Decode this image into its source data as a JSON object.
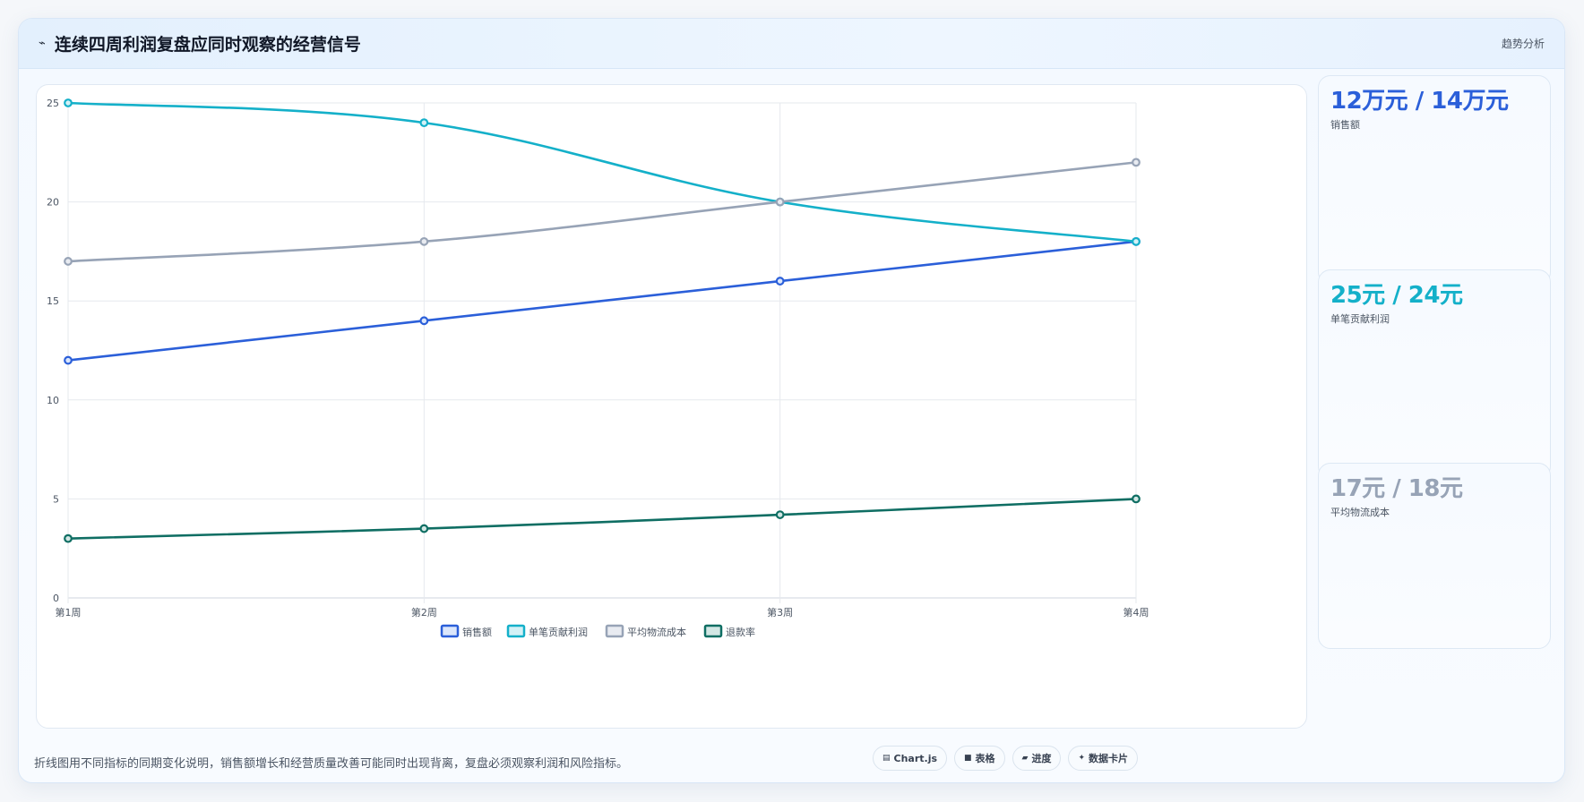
{
  "header": {
    "icon": "wave-icon",
    "title": "连续四周利润复盘应同时观察的经营信号",
    "tag": "趋势分析"
  },
  "chart_data": {
    "type": "line",
    "title": "",
    "xlabel": "",
    "ylabel": "",
    "categories": [
      "第1周",
      "第2周",
      "第3周",
      "第4周"
    ],
    "ylim": [
      0,
      25
    ],
    "yticks": [
      0,
      5,
      10,
      15,
      20,
      25
    ],
    "grid": true,
    "legend_position": "bottom",
    "series": [
      {
        "name": "销售额",
        "values": [
          12,
          14,
          16,
          18
        ],
        "color": "#2b5fd9",
        "fill": "#dbe6fb"
      },
      {
        "name": "单笔贡献利润",
        "values": [
          25,
          24,
          20,
          18
        ],
        "color": "#14b0c9",
        "fill": "#d3f1f6"
      },
      {
        "name": "平均物流成本",
        "values": [
          17,
          18,
          20,
          22
        ],
        "color": "#97a3b6",
        "fill": "#e8ebf1"
      },
      {
        "name": "退款率",
        "values": [
          3,
          3.5,
          4.2,
          5
        ],
        "color": "#0f6e63",
        "fill": "#d2e7e4"
      }
    ]
  },
  "kpis": [
    {
      "value": "12万元 / 14万元",
      "label": "销售额",
      "color": "#2b5fd9"
    },
    {
      "value": "25元 / 24元",
      "label": "单笔贡献利润",
      "color": "#14b0c9"
    },
    {
      "value": "17元 / 18元",
      "label": "平均物流成本",
      "color": "#97a3b6"
    }
  ],
  "footer": {
    "note": "折线图用不同指标的同期变化说明，销售额增长和经营质量改善可能同时出现背离，复盘必须观察利润和风险指标。",
    "tools": [
      {
        "icon": "chart-icon",
        "glyph": "▤",
        "label": "Chart.js"
      },
      {
        "icon": "table-icon",
        "glyph": "■",
        "label": "表格"
      },
      {
        "icon": "progress-icon",
        "glyph": "▰",
        "label": "进度"
      },
      {
        "icon": "sparkle-icon",
        "glyph": "✦",
        "label": "数据卡片"
      }
    ]
  }
}
